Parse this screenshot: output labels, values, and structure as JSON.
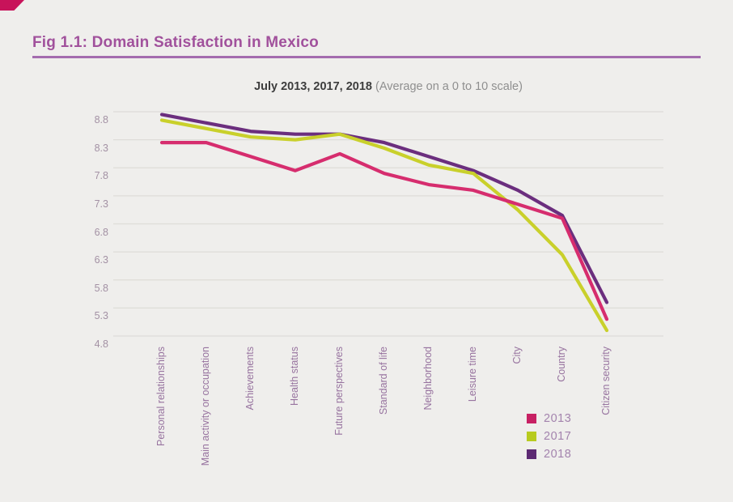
{
  "page": {
    "title": "Fig 1.1: Domain Satisfaction in Mexico",
    "subtitle_bold": "July 2013, 2017, 2018",
    "subtitle_note": " (Average on a 0 to 10 scale)"
  },
  "colors": {
    "background": "#efeeec",
    "corner_mark": "#c8135a",
    "title_text": "#a1519c",
    "title_rule": "#a46cae",
    "gridline": "#dedcd8",
    "ytick_text": "#a391a4",
    "xtick_text": "#97739f",
    "legend_text": "#a383ad"
  },
  "chart_data": {
    "type": "line",
    "title": "July 2013, 2017, 2018 (Average on a 0 to 10 scale)",
    "categories": [
      "Personal relationships",
      "Main activity or occupation",
      "Achievements",
      "Health status",
      "Future perspectives",
      "Standard of life",
      "Neighborhood",
      "Leisure time",
      "City",
      "Country",
      "Citizen security"
    ],
    "series": [
      {
        "name": "2013",
        "color": "#d62d6e",
        "swatch": "#c72063",
        "values": [
          8.25,
          8.25,
          8.0,
          7.75,
          8.05,
          7.7,
          7.5,
          7.4,
          7.15,
          6.9,
          5.1
        ]
      },
      {
        "name": "2017",
        "color": "#c9d02b",
        "swatch": "#b8cb1f",
        "values": [
          8.65,
          8.5,
          8.35,
          8.3,
          8.4,
          8.15,
          7.85,
          7.7,
          7.05,
          6.25,
          4.9
        ]
      },
      {
        "name": "2018",
        "color": "#6b2e7e",
        "swatch": "#5d2a73",
        "values": [
          8.75,
          8.6,
          8.45,
          8.4,
          8.4,
          8.25,
          8.0,
          7.75,
          7.4,
          6.95,
          5.4
        ]
      }
    ],
    "ylim": [
      4.8,
      8.8
    ],
    "yticks": [
      8.8,
      8.3,
      7.8,
      7.3,
      6.8,
      6.3,
      5.8,
      5.3,
      4.8
    ],
    "xlabel": "",
    "ylabel": "",
    "grid": true,
    "legend_position": "bottom-right"
  }
}
